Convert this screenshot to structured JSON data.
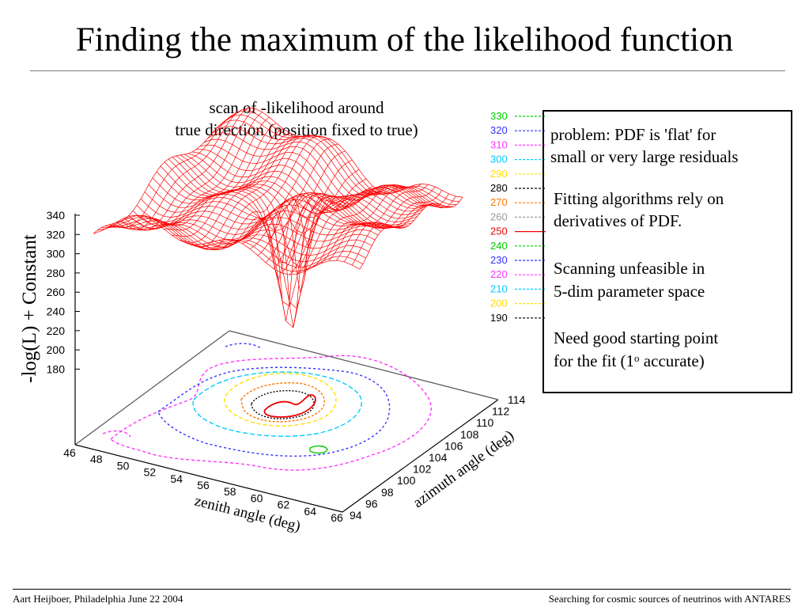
{
  "slide": {
    "title": "Finding the maximum of the likelihood function",
    "caption_line1": "scan of -likelihood around",
    "caption_line2": "true direction (position fixed to true)"
  },
  "figure": {
    "z_label": "-log(L) + Constant",
    "x_label": "zenith angle (deg)",
    "y_label": "azimuth angle (deg)",
    "z_ticks": [
      "340",
      "320",
      "300",
      "280",
      "260",
      "240",
      "220",
      "200",
      "180"
    ],
    "x_ticks": [
      "46",
      "48",
      "50",
      "52",
      "54",
      "56",
      "58",
      "60",
      "62",
      "64",
      "66"
    ],
    "y_ticks": [
      "94",
      "96",
      "98",
      "100",
      "102",
      "104",
      "106",
      "108",
      "110",
      "112",
      "114"
    ],
    "legend": [
      {
        "label": "330",
        "color": "#00cc00"
      },
      {
        "label": "320",
        "color": "#3333ff"
      },
      {
        "label": "310",
        "color": "#ff33ff"
      },
      {
        "label": "300",
        "color": "#00ccff"
      },
      {
        "label": "290",
        "color": "#ffdd00"
      },
      {
        "label": "280",
        "color": "#000000"
      },
      {
        "label": "270",
        "color": "#ff7700"
      },
      {
        "label": "260",
        "color": "#999999"
      },
      {
        "label": "250",
        "color": "#ee0000"
      },
      {
        "label": "240",
        "color": "#00cc00"
      },
      {
        "label": "230",
        "color": "#3333ff"
      },
      {
        "label": "220",
        "color": "#ff33ff"
      },
      {
        "label": "210",
        "color": "#00ccff"
      },
      {
        "label": "200",
        "color": "#ffdd00"
      },
      {
        "label": "190",
        "color": "#000000"
      }
    ],
    "surface_color": "#ff0000"
  },
  "notes": {
    "line1": "problem: PDF is 'flat' for",
    "line2": "small or very large residuals",
    "line3": "Fitting algorithms rely on",
    "line4": "derivatives of PDF.",
    "line5": "Scanning unfeasible in",
    "line6": "5-dim parameter space",
    "line7": "Need good starting point",
    "line8_pre": "for the fit (1",
    "line8_sup": "o",
    "line8_post": " accurate)"
  },
  "footer": {
    "left": "Aart Heijboer, Philadelphia June 22 2004",
    "right": "Searching for cosmic sources of neutrinos with ANTARES"
  }
}
